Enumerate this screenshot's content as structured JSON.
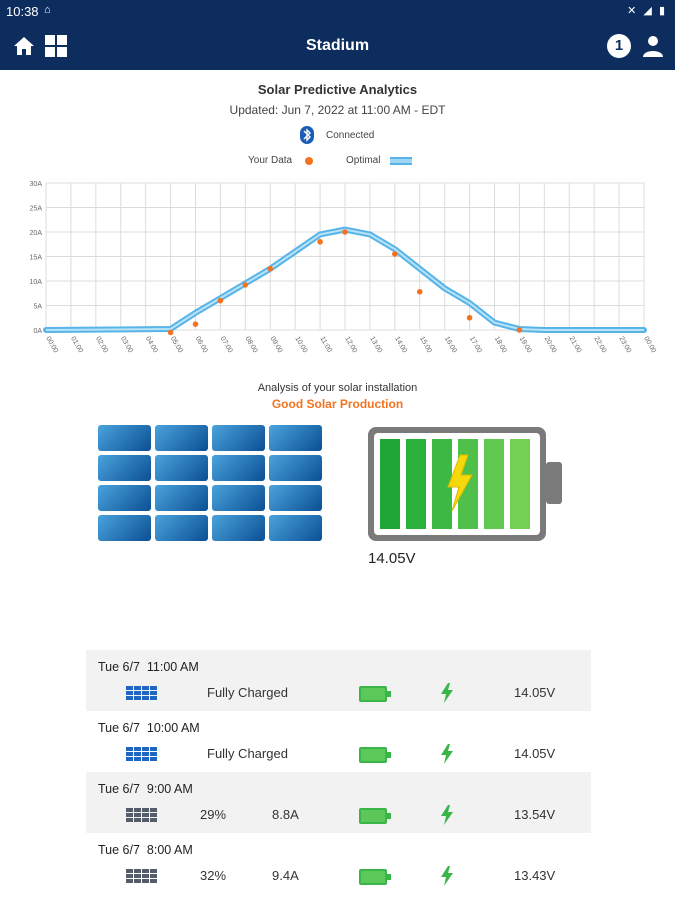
{
  "status_bar": {
    "time": "10:38",
    "notification": "⌂",
    "system_icons": "✕ ◢ ▮"
  },
  "app_bar": {
    "title": "Stadium",
    "info_badge": "1",
    "icons": [
      "home-icon",
      "dashboard-grid-icon",
      "info-icon",
      "user-icon"
    ]
  },
  "chart_header": {
    "title": "Solar Predictive Analytics",
    "updated": "Updated: Jun 7, 2022 at 11:00 AM - EDT",
    "connection": "Connected",
    "legend_your_data": "Your Data",
    "legend_optimal": "Optimal"
  },
  "chart_data": {
    "type": "line",
    "x_ticks": [
      "00:00",
      "01:00",
      "02:00",
      "03:00",
      "04:00",
      "05:00",
      "06:00",
      "07:00",
      "08:00",
      "09:00",
      "10:00",
      "11:00",
      "12:00",
      "13:00",
      "14:00",
      "15:00",
      "16:00",
      "17:00",
      "18:00",
      "19:00",
      "20:00",
      "21:00",
      "22:00",
      "23:00",
      "00:00"
    ],
    "y_ticks": [
      "0A",
      "5A",
      "10A",
      "15A",
      "20A",
      "25A",
      "30A"
    ],
    "ylim": [
      0,
      30
    ],
    "grid": true,
    "legend_position": "top-center",
    "series": [
      {
        "name": "Optimal",
        "style": "line",
        "color": "#58b4e8",
        "x": [
          0,
          5,
          6,
          7,
          8,
          9,
          10,
          11,
          12,
          13,
          14,
          15,
          16,
          17,
          18,
          19,
          20,
          24
        ],
        "y": [
          0,
          0.2,
          3.5,
          6.5,
          9.5,
          12.5,
          16,
          19.5,
          20.5,
          19.5,
          16.5,
          12.5,
          8.5,
          5.5,
          1.5,
          0.2,
          0,
          0
        ]
      },
      {
        "name": "Your Data",
        "style": "scatter",
        "color": "#f37321",
        "x": [
          5,
          6,
          7,
          8,
          9,
          11,
          12,
          14,
          15,
          17,
          19
        ],
        "y": [
          -0.5,
          1.2,
          6,
          9.2,
          12.5,
          18,
          20,
          15.5,
          7.8,
          2.5,
          0
        ]
      }
    ]
  },
  "analysis": {
    "caption": "Analysis of your solar installation",
    "status": "Good Solar Production",
    "status_color": "#f37321"
  },
  "battery_display": {
    "voltage": "14.05V",
    "bars": 6,
    "charging": true
  },
  "history": [
    {
      "date": "Tue 6/7",
      "time": "11:00 AM",
      "panel_active": true,
      "label_a": "Fully Charged",
      "label_b": "",
      "voltage": "14.05V"
    },
    {
      "date": "Tue 6/7",
      "time": "10:00 AM",
      "panel_active": true,
      "label_a": "Fully Charged",
      "label_b": "",
      "voltage": "14.05V"
    },
    {
      "date": "Tue 6/7",
      "time": "9:00 AM",
      "panel_active": false,
      "label_a": "29%",
      "label_b": "8.8A",
      "voltage": "13.54V"
    },
    {
      "date": "Tue 6/7",
      "time": "8:00 AM",
      "panel_active": false,
      "label_a": "32%",
      "label_b": "9.4A",
      "voltage": "13.43V"
    }
  ]
}
